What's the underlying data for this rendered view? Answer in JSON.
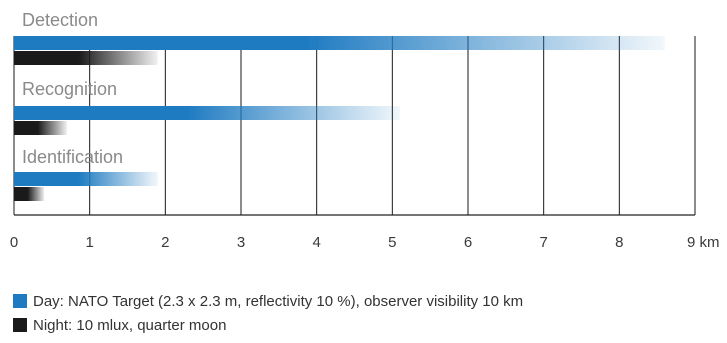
{
  "chart_data": {
    "type": "bar",
    "categories": [
      "Detection",
      "Recognition",
      "Identification"
    ],
    "series": [
      {
        "name": "Day: NATO Target (2.3 x 2.3 m, reflectivity 10 %), observer visibility 10 km",
        "values": [
          8.6,
          5.1,
          1.9
        ],
        "color": "#1f7bc1"
      },
      {
        "name": "Night: 10 mlux, quarter moon",
        "values": [
          1.9,
          0.7,
          0.4
        ],
        "color": "#1a1a1a"
      }
    ],
    "x_ticks": [
      "0",
      "1",
      "2",
      "3",
      "4",
      "5",
      "6",
      "7",
      "8",
      "9 km"
    ],
    "xlim": [
      0,
      9
    ],
    "grid": true,
    "legend_position": "bottom"
  }
}
